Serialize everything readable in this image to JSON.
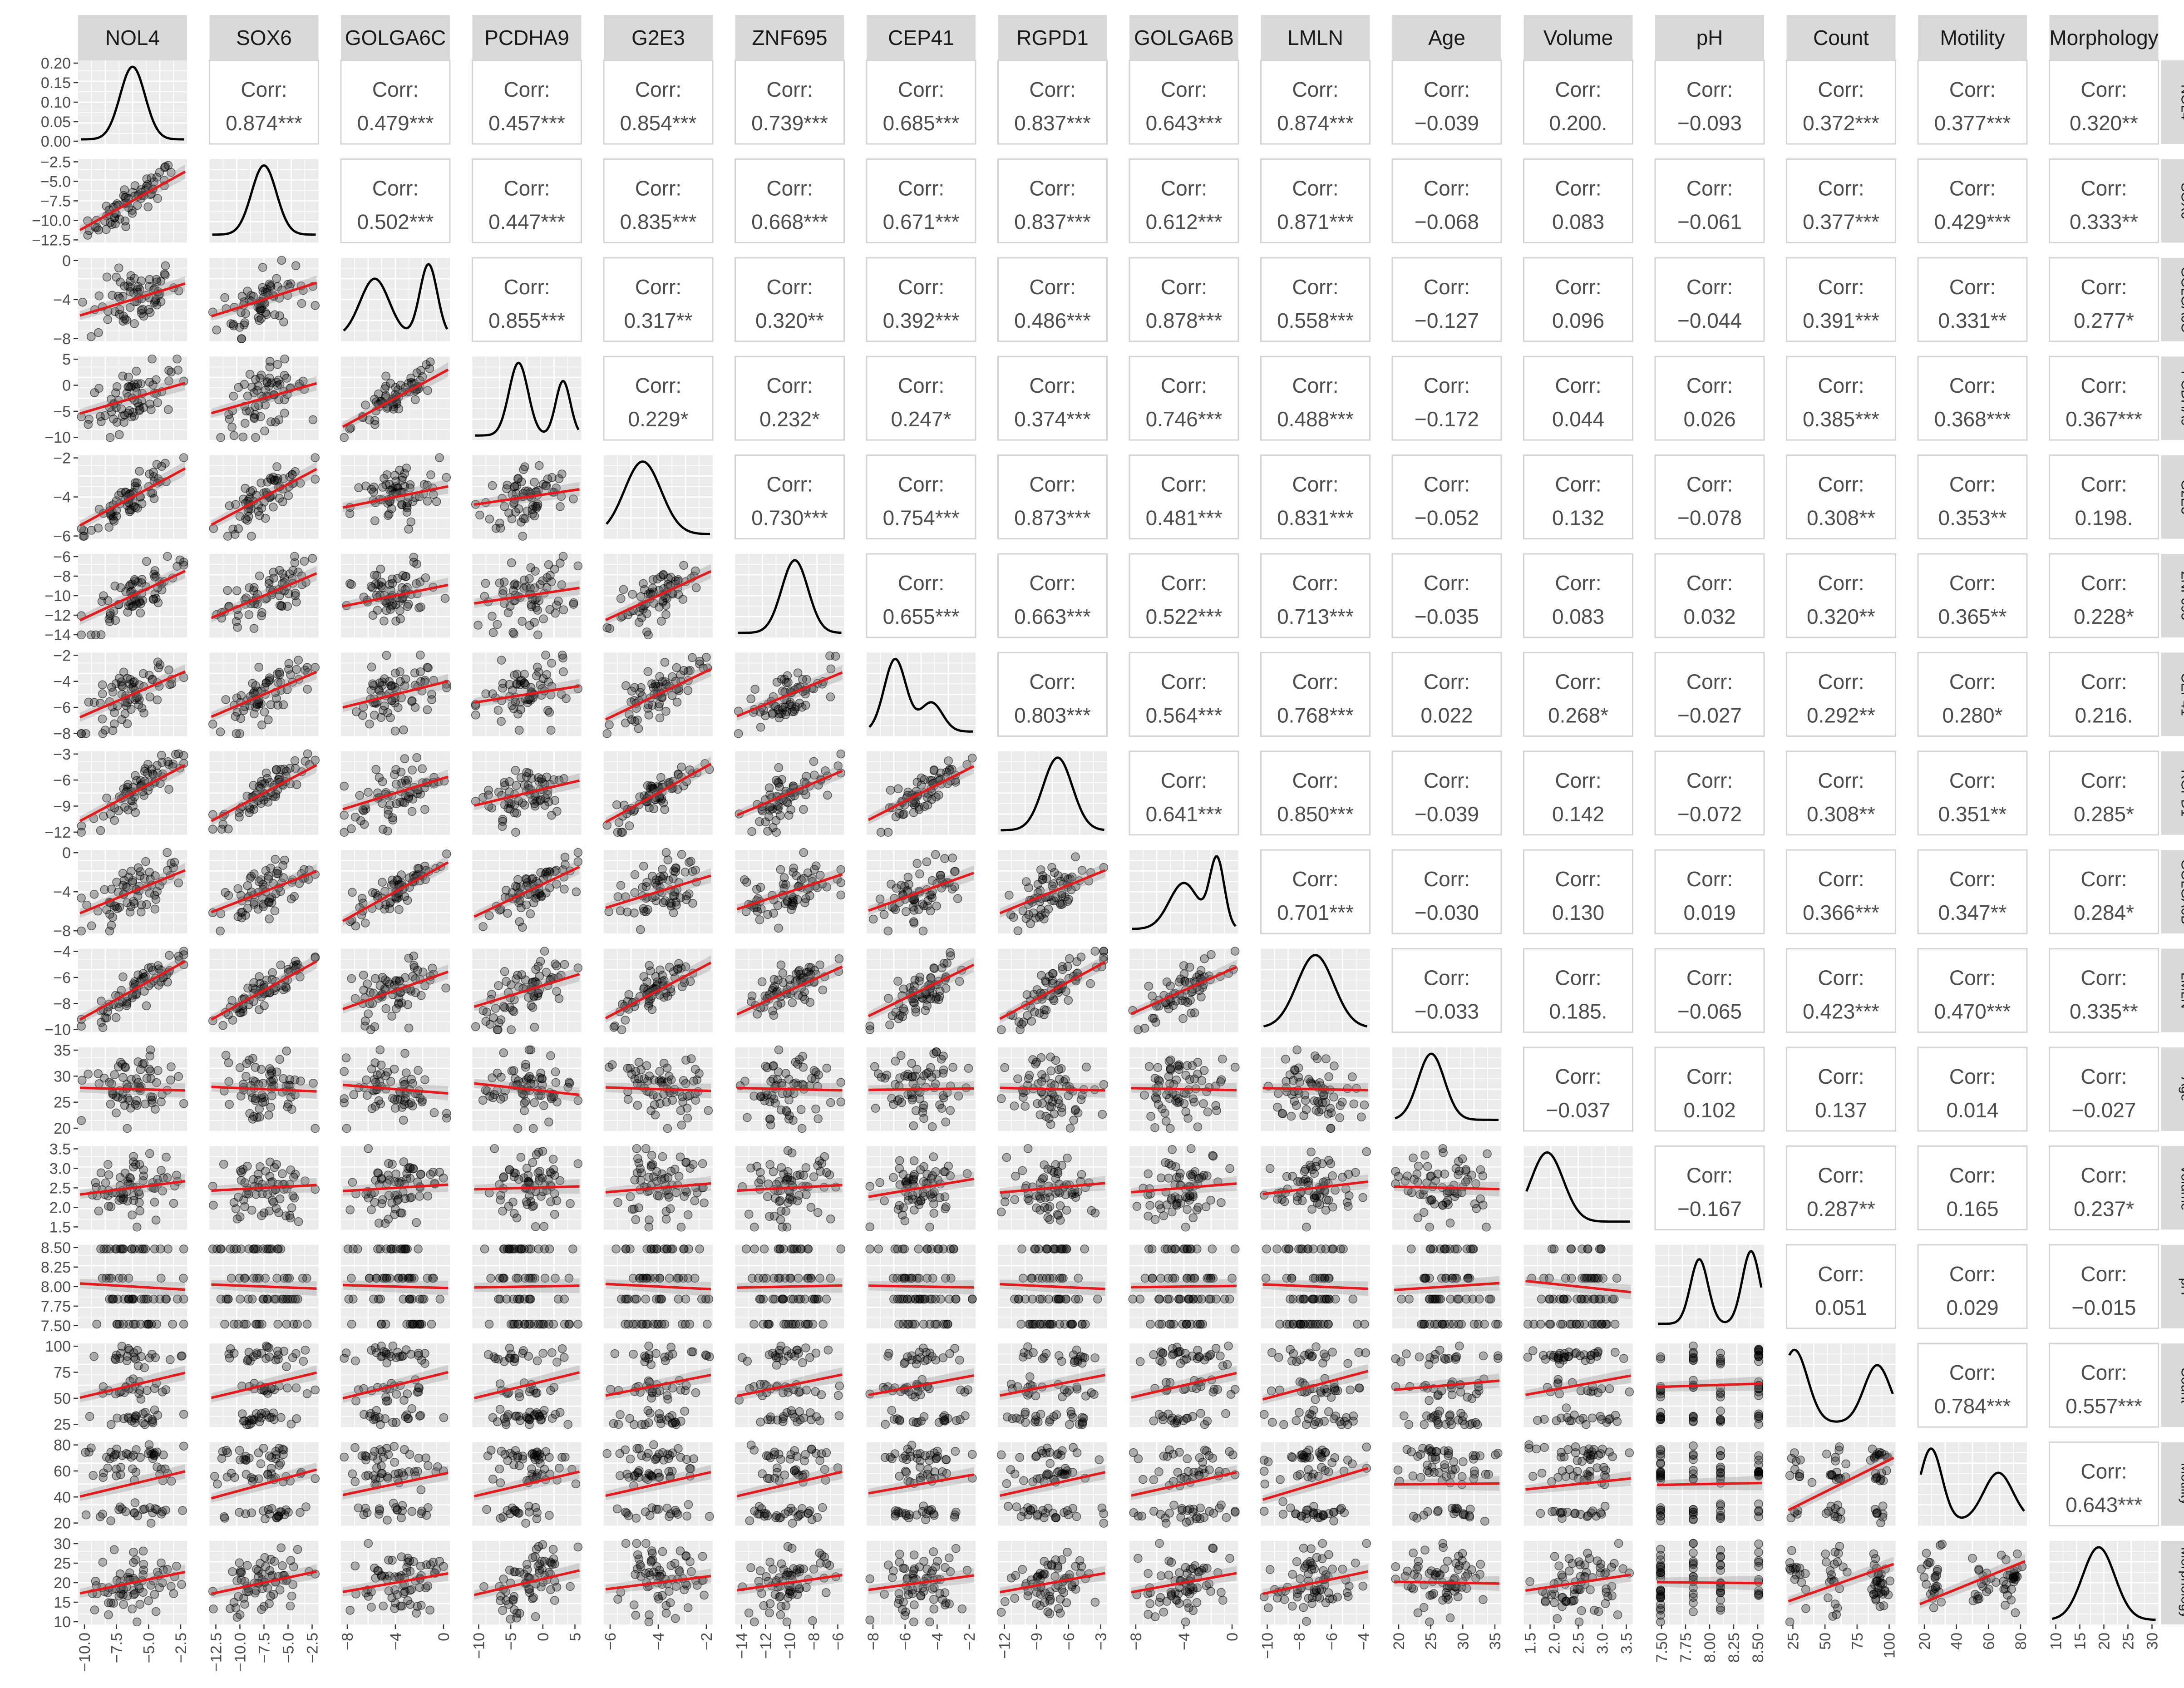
{
  "chart_data": {
    "type": "scatter",
    "variables": [
      "NOL4",
      "SOX6",
      "GOLGA6C",
      "PCDHA9",
      "G2E3",
      "ZNF695",
      "CEP41",
      "RGPD1",
      "GOLGA6B",
      "LMLN",
      "Age",
      "Volume",
      "pH",
      "Count",
      "Motility",
      "Morphology"
    ],
    "corr_label": "Corr:",
    "correlations": [
      [
        "0.874***",
        "0.479***",
        "0.457***",
        "0.854***",
        "0.739***",
        "0.685***",
        "0.837***",
        "0.643***",
        "0.874***",
        "−0.039",
        "0.200.",
        "−0.093",
        "0.372***",
        "0.377***",
        "0.320**"
      ],
      [
        "0.502***",
        "0.447***",
        "0.835***",
        "0.668***",
        "0.671***",
        "0.837***",
        "0.612***",
        "0.871***",
        "−0.068",
        "0.083",
        "−0.061",
        "0.377***",
        "0.429***",
        "0.333**"
      ],
      [
        "0.855***",
        "0.317**",
        "0.320**",
        "0.392***",
        "0.486***",
        "0.878***",
        "0.558***",
        "−0.127",
        "0.096",
        "−0.044",
        "0.391***",
        "0.331**",
        "0.277*"
      ],
      [
        "0.229*",
        "0.232*",
        "0.247*",
        "0.374***",
        "0.746***",
        "0.488***",
        "−0.172",
        "0.044",
        "0.026",
        "0.385***",
        "0.368***",
        "0.367***"
      ],
      [
        "0.730***",
        "0.754***",
        "0.873***",
        "0.481***",
        "0.831***",
        "−0.052",
        "0.132",
        "−0.078",
        "0.308**",
        "0.353**",
        "0.198."
      ],
      [
        "0.655***",
        "0.663***",
        "0.522***",
        "0.713***",
        "−0.035",
        "0.083",
        "0.032",
        "0.320**",
        "0.365**",
        "0.228*"
      ],
      [
        "0.803***",
        "0.564***",
        "0.768***",
        "0.022",
        "0.268*",
        "−0.027",
        "0.292**",
        "0.280*",
        "0.216."
      ],
      [
        "0.641***",
        "0.850***",
        "−0.039",
        "0.142",
        "−0.072",
        "0.308**",
        "0.351**",
        "0.285*"
      ],
      [
        "0.701***",
        "−0.030",
        "0.130",
        "0.019",
        "0.366***",
        "0.347**",
        "0.284*"
      ],
      [
        "−0.033",
        "0.185.",
        "−0.065",
        "0.423***",
        "0.470***",
        "0.335**"
      ],
      [
        "−0.037",
        "0.102",
        "0.137",
        "0.014",
        "−0.027"
      ],
      [
        "−0.167",
        "0.287**",
        "0.165",
        "0.237*"
      ],
      [
        "0.051",
        "0.029",
        "−0.015"
      ],
      [
        "0.784***",
        "0.557***"
      ],
      [
        "0.643***"
      ]
    ],
    "axis_ticks": [
      [
        "−10.0",
        "−7.5",
        "−5.0",
        "−2.5"
      ],
      [
        "−12.5",
        "−10.0",
        "−7.5",
        "−5.0",
        "−2.5"
      ],
      [
        "−8",
        "−4",
        "0"
      ],
      [
        "−10",
        "−5",
        "0",
        "5"
      ],
      [
        "−6",
        "−4",
        "−2"
      ],
      [
        "−14",
        "−12",
        "−10",
        "−8",
        "−6"
      ],
      [
        "−8",
        "−6",
        "−4",
        "−2"
      ],
      [
        "−12",
        "−9",
        "−6",
        "−3"
      ],
      [
        "−8",
        "−4",
        "0"
      ],
      [
        "−10",
        "−8",
        "−6",
        "−4"
      ],
      [
        "20",
        "25",
        "30",
        "35"
      ],
      [
        "1.5",
        "2.0",
        "2.5",
        "3.0",
        "3.5"
      ],
      [
        "7.50",
        "7.75",
        "8.00",
        "8.25",
        "8.50"
      ],
      [
        "25",
        "50",
        "75",
        "100"
      ],
      [
        "20",
        "40",
        "60",
        "80"
      ],
      [
        "10",
        "15",
        "20",
        "25",
        "30"
      ]
    ],
    "row1_density_ticks": [
      "0.20",
      "0.15",
      "0.10",
      "0.05",
      "0.00"
    ],
    "colors": {
      "strip_bg": "#d9d9d9",
      "panel_bg": "#ebebeb",
      "grid": "#ffffff",
      "fit_line": "#e41a1c",
      "points": "#000000",
      "corr_border": "#d3d3d3"
    }
  }
}
